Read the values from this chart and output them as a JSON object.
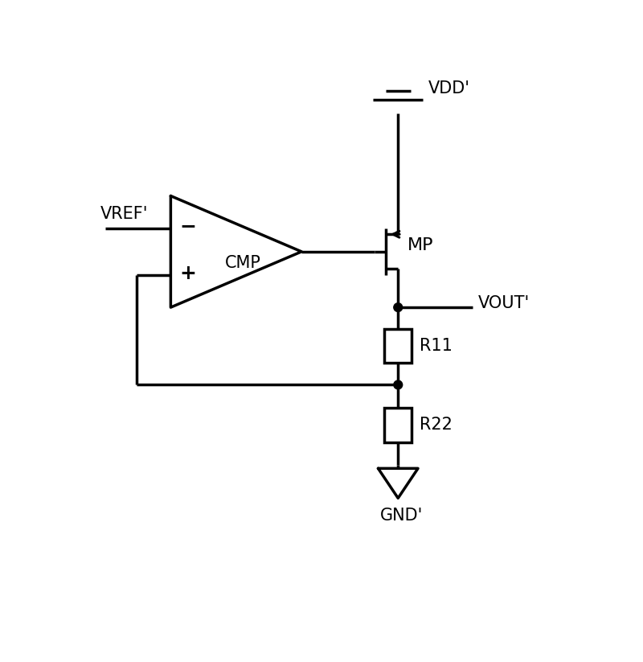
{
  "background_color": "#ffffff",
  "line_color": "#000000",
  "line_width": 2.5,
  "fig_width": 8.0,
  "fig_height": 8.23,
  "labels": {
    "vdd": "VDD'",
    "vref": "VREF'",
    "vout": "VOUT'",
    "gnd": "GND'",
    "mp": "MP",
    "cmp": "CMP",
    "r11": "R11",
    "r22": "R22",
    "minus": "−",
    "plus": "+"
  },
  "font_size": 15,
  "font_family": "DejaVu Sans"
}
